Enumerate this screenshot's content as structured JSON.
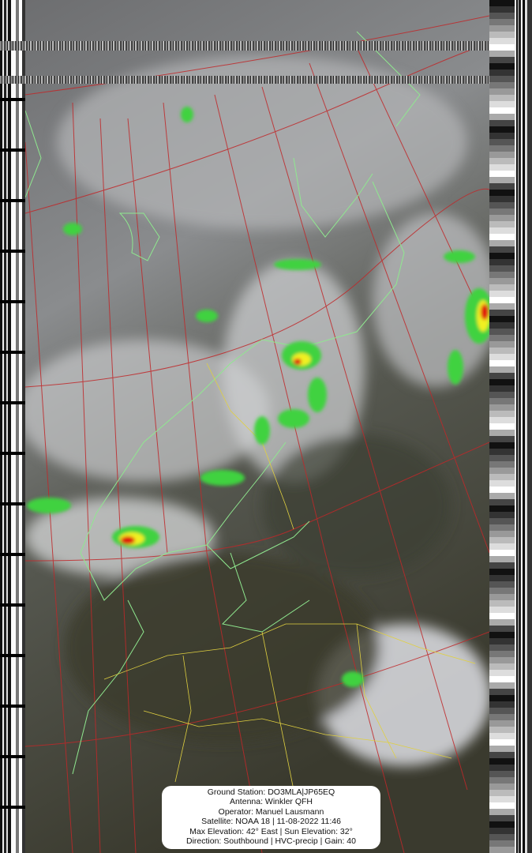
{
  "image": {
    "colors": {
      "grid": "#c0282a",
      "coastline": "#8fe88f",
      "borders": "#e0d040",
      "precip_low": "#3fd23f",
      "precip_mid": "#f0f020",
      "precip_high": "#e01010"
    }
  },
  "info_box": {
    "ground_station": "Ground Station: DO3MLA|JP65EQ",
    "antenna": "Antenna: Winkler QFH",
    "operator": "Operator: Manuel Lausmann",
    "satellite": "Satellite: NOAA 18 | 11-08-2022 11:46",
    "elevation": "Max Elevation: 42° East | Sun Elevation: 32°",
    "direction": "Direction: Southbound | HVC-precip | Gain: 40"
  }
}
